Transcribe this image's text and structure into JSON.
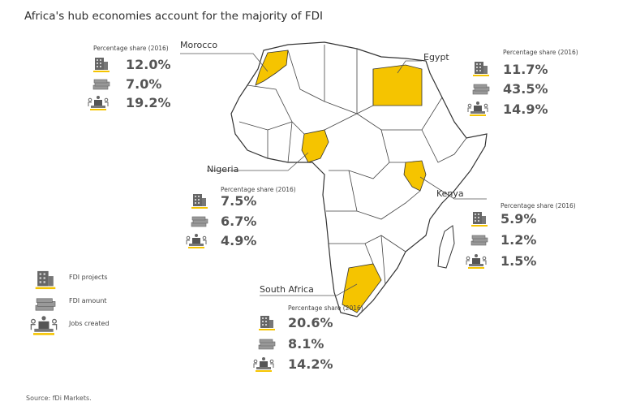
{
  "title": "Africa's hub economies account for the majority of FDI",
  "colors": {
    "highlight": "#f5c400",
    "text": "#555555",
    "border": "#333333"
  },
  "panel_header": "Percentage share (2016)",
  "countries": [
    {
      "name": "Morocco",
      "fdi_projects": "12.0%",
      "fdi_amount": "7.0%",
      "jobs_created": "19.2%"
    },
    {
      "name": "Egypt",
      "fdi_projects": "11.7%",
      "fdi_amount": "43.5%",
      "jobs_created": "14.9%"
    },
    {
      "name": "Nigeria",
      "fdi_projects": "7.5%",
      "fdi_amount": "6.7%",
      "jobs_created": "4.9%"
    },
    {
      "name": "Kenya",
      "fdi_projects": "5.9%",
      "fdi_amount": "1.2%",
      "jobs_created": "1.5%"
    },
    {
      "name": "South Africa",
      "fdi_projects": "20.6%",
      "fdi_amount": "8.1%",
      "jobs_created": "14.2%"
    }
  ],
  "legend": [
    {
      "icon": "building-icon",
      "label": "FDI projects"
    },
    {
      "icon": "money-icon",
      "label": "FDI amount"
    },
    {
      "icon": "jobs-icon",
      "label": "Jobs created"
    }
  ],
  "source": "Source: fDi Markets."
}
